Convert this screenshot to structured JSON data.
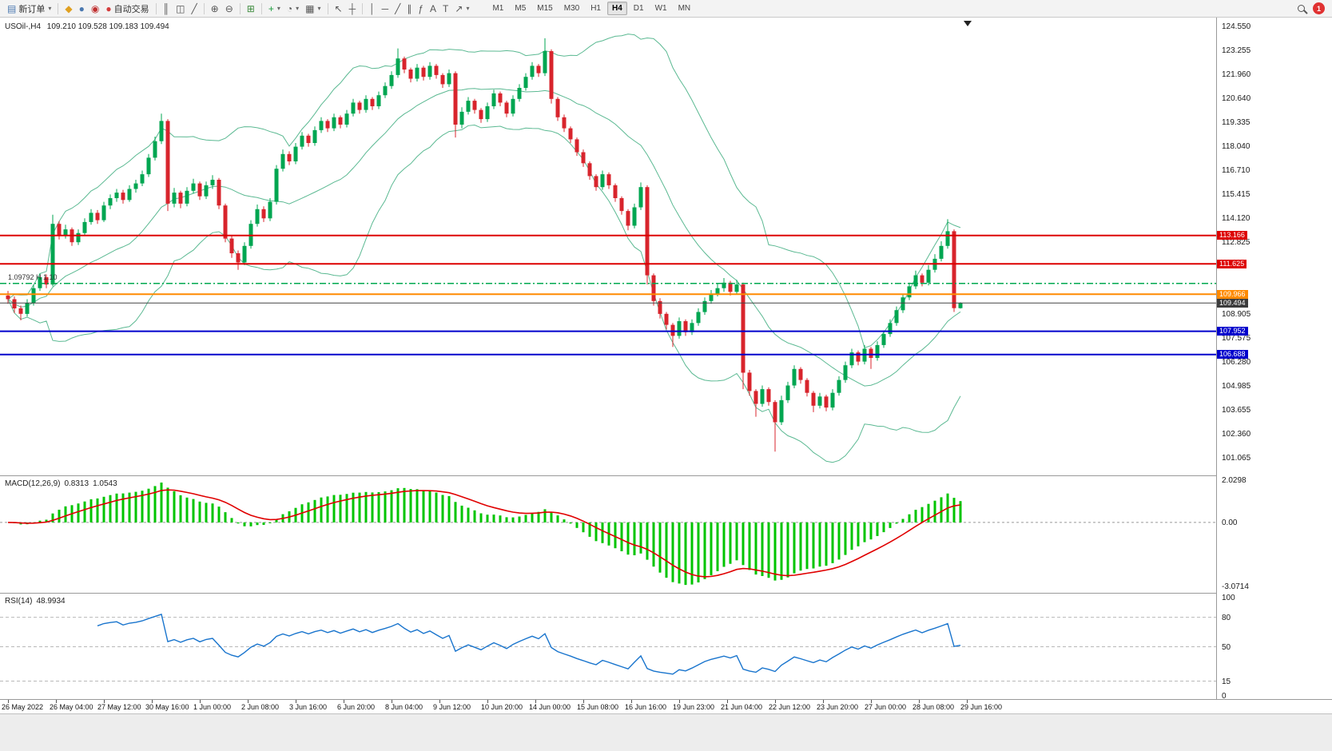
{
  "toolbar": {
    "notification_count": "1",
    "left_items": [
      {
        "name": "new-order-button",
        "icon": "new-order-icon",
        "glyph": "▤",
        "color": "#4a78b0",
        "label": "新订单",
        "dropdown": true
      },
      {
        "sep": true
      },
      {
        "name": "metaeditor-button",
        "icon": "metaeditor-icon",
        "glyph": "◆",
        "color": "#e0a020"
      },
      {
        "name": "profile-button",
        "icon": "profile-icon",
        "glyph": "●",
        "color": "#4a78b0"
      },
      {
        "name": "community-button",
        "icon": "community-icon",
        "glyph": "◉",
        "color": "#c03030"
      },
      {
        "name": "autotrading-button",
        "icon": "autotrading-icon",
        "glyph": "●",
        "color": "#d43c3c",
        "label": "自动交易"
      },
      {
        "sep": true
      },
      {
        "name": "bar-chart-button",
        "icon": "bar-chart-icon",
        "glyph": "║"
      },
      {
        "name": "candlestick-chart-button",
        "icon": "candlestick-icon",
        "glyph": "◫"
      },
      {
        "name": "line-chart-button",
        "icon": "line-chart-icon",
        "glyph": "╱"
      },
      {
        "sep": true
      },
      {
        "name": "zoom-in-button",
        "icon": "zoom-in-icon",
        "glyph": "⊕"
      },
      {
        "name": "zoom-out-button",
        "icon": "zoom-out-icon",
        "glyph": "⊖"
      },
      {
        "sep": true
      },
      {
        "name": "tile-windows-button",
        "icon": "tile-windows-icon",
        "glyph": "⊞",
        "color": "#3c8a3c"
      },
      {
        "sep": true
      },
      {
        "name": "indicators-button",
        "icon": "indicators-icon",
        "glyph": "+",
        "color": "#1a9c3c",
        "dropdown": true
      },
      {
        "name": "periods-button",
        "icon": "clock-icon",
        "glyph": "◔",
        "dropdown": true
      },
      {
        "name": "templates-button",
        "icon": "template-icon",
        "glyph": "▦",
        "dropdown": true
      },
      {
        "sep": true
      },
      {
        "name": "cursor-button",
        "icon": "cursor-icon",
        "glyph": "↖"
      },
      {
        "name": "crosshair-button",
        "icon": "crosshair-icon",
        "glyph": "┼"
      },
      {
        "sep": true
      },
      {
        "name": "vertical-line-button",
        "icon": "vertical-line-icon",
        "glyph": "│"
      },
      {
        "name": "horizontal-line-button",
        "icon": "horizontal-line-icon",
        "glyph": "─"
      },
      {
        "name": "trendline-button",
        "icon": "trendline-icon",
        "glyph": "╱"
      },
      {
        "name": "channel-button",
        "icon": "channel-icon",
        "glyph": "∥"
      },
      {
        "name": "fibonacci-button",
        "icon": "fibonacci-icon",
        "glyph": "ƒ"
      },
      {
        "name": "text-button",
        "icon": "text-icon",
        "glyph": "A"
      },
      {
        "name": "label-button",
        "icon": "label-icon",
        "glyph": "T"
      },
      {
        "name": "arrows-button",
        "icon": "arrow-icon",
        "glyph": "↗",
        "dropdown": true
      }
    ],
    "timeframes": {
      "items": [
        "M1",
        "M5",
        "M15",
        "M30",
        "H1",
        "H4",
        "D1",
        "W1",
        "MN"
      ],
      "active": "H4"
    }
  },
  "chart": {
    "symbol_label": "USOil-,H4",
    "ohlc_label": "109.210 109.528 109.183 109.494",
    "annotation": "1.09792 H 1.10",
    "colors": {
      "candle_up": "#00a651",
      "candle_down": "#d8242c",
      "bollinger": "#5bb992",
      "macd_hist": "#00c400",
      "macd_signal": "#e00000",
      "rsi_line": "#1874cd",
      "current_price_tag": "#3c3c3c"
    },
    "axis_ticks": [
      "124.550",
      "123.255",
      "121.960",
      "120.640",
      "119.335",
      "118.040",
      "116.710",
      "115.415",
      "114.120",
      "112.825",
      "108.905",
      "107.575",
      "106.280",
      "104.985",
      "103.655",
      "102.360",
      "101.065"
    ],
    "lines": [
      {
        "price": 113.166,
        "label": "113.166",
        "color": "#dd0000",
        "width": 2,
        "dash": "",
        "tag": true,
        "name": "resistance-line-113166"
      },
      {
        "price": 111.625,
        "label": "111.625",
        "color": "#dd0000",
        "width": 2,
        "dash": "",
        "tag": true,
        "name": "resistance-line-111625"
      },
      {
        "price": 110.56,
        "label": "",
        "color": "#00a84f",
        "width": 1.5,
        "dash": "8 3 2 3",
        "tag": false,
        "name": "support-line-green-dashed"
      },
      {
        "price": 109.966,
        "label": "109.966",
        "color": "#ff8a00",
        "width": 2,
        "dash": "",
        "tag": true,
        "name": "pivot-line-109966"
      },
      {
        "price": 109.494,
        "label": "109.494",
        "color": "#444444",
        "width": 1,
        "dash": "",
        "tag": true,
        "name": "current-price-line"
      },
      {
        "price": 107.952,
        "label": "107.952",
        "color": "#0000cc",
        "width": 2,
        "dash": "",
        "tag": true,
        "name": "support-line-107952"
      },
      {
        "price": 106.688,
        "label": "106.688",
        "color": "#0000cc",
        "width": 2,
        "dash": "",
        "tag": true,
        "name": "support-line-106688"
      }
    ],
    "time_labels": [
      "26 May 2022",
      "26 May 04:00",
      "27 May 12:00",
      "30 May 16:00",
      "1 Jun 00:00",
      "2 Jun 08:00",
      "3 Jun 16:00",
      "6 Jun 20:00",
      "8 Jun 04:00",
      "9 Jun 12:00",
      "10 Jun 20:00",
      "14 Jun 00:00",
      "15 Jun 08:00",
      "16 Jun 16:00",
      "19 Jun 23:00",
      "21 Jun 04:00",
      "22 Jun 12:00",
      "23 Jun 20:00",
      "27 Jun 00:00",
      "28 Jun 08:00",
      "29 Jun 16:00"
    ]
  },
  "panes": {
    "macd": {
      "label": "MACD(12,26,9)",
      "value_main": "0.8313",
      "value_signal": "1.0543"
    },
    "rsi": {
      "label": "RSI(14)",
      "value": "48.9934"
    }
  },
  "chart_data": {
    "type": "candlestick",
    "symbol": "USOil",
    "timeframe": "H4",
    "current_bar": {
      "open": 109.21,
      "high": 109.528,
      "low": 109.183,
      "close": 109.494
    },
    "y_axis": {
      "min": 101.065,
      "max": 124.55
    },
    "macd_axis": {
      "min": -3.0714,
      "max": 2.0298,
      "ticks": [
        {
          "v": 2.0298,
          "t": "2.0298"
        },
        {
          "v": 0,
          "t": "0.00"
        },
        {
          "v": -3.0714,
          "t": "-3.0714"
        }
      ]
    },
    "rsi_axis": {
      "min": 0,
      "max": 100,
      "levels": [
        80,
        50,
        15
      ],
      "ticks": [
        {
          "v": 100,
          "t": "100"
        },
        {
          "v": 80,
          "t": "80"
        },
        {
          "v": 50,
          "t": "50"
        },
        {
          "v": 15,
          "t": "15"
        },
        {
          "v": 0,
          "t": "0"
        }
      ]
    },
    "indicators": {
      "bollinger": {
        "period": 20,
        "deviation": 2
      },
      "macd": {
        "fast": 12,
        "slow": 26,
        "signal": 9
      },
      "rsi": {
        "period": 14
      }
    },
    "candles": [
      [
        109.9,
        110.15,
        109.45,
        109.7
      ],
      [
        109.7,
        109.85,
        108.95,
        109.2
      ],
      [
        109.2,
        109.35,
        108.55,
        108.9
      ],
      [
        108.9,
        109.7,
        108.75,
        109.5
      ],
      [
        109.5,
        110.5,
        109.35,
        110.3
      ],
      [
        110.3,
        111.1,
        110.15,
        110.9
      ],
      [
        110.9,
        111.05,
        110.3,
        110.5
      ],
      [
        110.5,
        114.3,
        110.4,
        113.8
      ],
      [
        113.8,
        113.95,
        112.95,
        113.2
      ],
      [
        113.2,
        113.75,
        113.0,
        113.5
      ],
      [
        113.5,
        113.6,
        112.6,
        112.8
      ],
      [
        112.8,
        113.5,
        112.65,
        113.3
      ],
      [
        113.3,
        114.1,
        113.15,
        113.9
      ],
      [
        113.9,
        114.6,
        113.75,
        114.4
      ],
      [
        114.4,
        114.55,
        113.8,
        114.0
      ],
      [
        114.0,
        115.0,
        113.9,
        114.8
      ],
      [
        114.8,
        115.4,
        114.6,
        115.2
      ],
      [
        115.2,
        115.7,
        115.0,
        115.5
      ],
      [
        115.5,
        115.65,
        114.9,
        115.1
      ],
      [
        115.1,
        115.9,
        115.0,
        115.7
      ],
      [
        115.7,
        116.2,
        115.5,
        116.0
      ],
      [
        116.0,
        116.7,
        115.85,
        116.5
      ],
      [
        116.5,
        117.6,
        116.35,
        117.4
      ],
      [
        117.4,
        118.55,
        117.25,
        118.3
      ],
      [
        118.3,
        119.8,
        118.15,
        119.4
      ],
      [
        119.4,
        119.5,
        114.5,
        114.9
      ],
      [
        114.9,
        115.75,
        114.7,
        115.5
      ],
      [
        115.5,
        115.6,
        114.65,
        114.9
      ],
      [
        114.9,
        115.8,
        114.75,
        115.6
      ],
      [
        115.6,
        116.25,
        115.45,
        116.0
      ],
      [
        116.0,
        116.1,
        115.1,
        115.3
      ],
      [
        115.3,
        116.1,
        115.15,
        115.9
      ],
      [
        115.9,
        116.45,
        115.7,
        116.2
      ],
      [
        116.2,
        116.3,
        114.6,
        114.8
      ],
      [
        114.8,
        114.9,
        112.8,
        113.0
      ],
      [
        113.0,
        113.15,
        111.95,
        112.2
      ],
      [
        112.2,
        112.35,
        111.3,
        111.7
      ],
      [
        111.7,
        112.8,
        111.55,
        112.6
      ],
      [
        112.6,
        114.0,
        112.45,
        113.8
      ],
      [
        113.8,
        114.85,
        113.65,
        114.6
      ],
      [
        114.6,
        114.75,
        113.9,
        114.1
      ],
      [
        114.1,
        115.2,
        113.95,
        115.0
      ],
      [
        115.0,
        117.0,
        114.85,
        116.8
      ],
      [
        116.8,
        117.85,
        116.65,
        117.6
      ],
      [
        117.6,
        117.75,
        117.0,
        117.2
      ],
      [
        117.2,
        118.2,
        117.05,
        118.0
      ],
      [
        118.0,
        118.8,
        117.85,
        118.6
      ],
      [
        118.6,
        118.7,
        118.0,
        118.2
      ],
      [
        118.2,
        119.1,
        118.05,
        118.9
      ],
      [
        118.9,
        119.6,
        118.75,
        119.4
      ],
      [
        119.4,
        119.5,
        118.8,
        119.0
      ],
      [
        119.0,
        119.8,
        118.85,
        119.6
      ],
      [
        119.6,
        119.7,
        119.0,
        119.2
      ],
      [
        119.2,
        120.0,
        119.05,
        119.8
      ],
      [
        119.8,
        120.6,
        119.65,
        120.4
      ],
      [
        120.4,
        120.5,
        119.8,
        120.0
      ],
      [
        120.0,
        120.8,
        119.85,
        120.6
      ],
      [
        120.6,
        120.7,
        120.0,
        120.2
      ],
      [
        120.2,
        121.0,
        120.05,
        120.8
      ],
      [
        120.8,
        121.5,
        120.65,
        121.3
      ],
      [
        121.3,
        122.1,
        121.15,
        121.9
      ],
      [
        121.9,
        123.35,
        121.75,
        122.8
      ],
      [
        122.8,
        122.9,
        122.0,
        122.2
      ],
      [
        122.2,
        122.3,
        121.5,
        121.7
      ],
      [
        121.7,
        122.5,
        121.55,
        122.3
      ],
      [
        122.3,
        122.4,
        121.6,
        121.8
      ],
      [
        121.8,
        122.6,
        121.65,
        122.4
      ],
      [
        122.4,
        122.5,
        121.7,
        121.9
      ],
      [
        121.9,
        122.0,
        121.2,
        121.4
      ],
      [
        121.4,
        122.2,
        121.25,
        122.0
      ],
      [
        122.0,
        122.1,
        118.5,
        119.2
      ],
      [
        119.2,
        120.15,
        119.0,
        119.9
      ],
      [
        119.9,
        120.7,
        119.75,
        120.5
      ],
      [
        120.5,
        120.6,
        119.8,
        120.0
      ],
      [
        120.0,
        120.1,
        119.3,
        119.5
      ],
      [
        119.5,
        120.4,
        119.35,
        120.2
      ],
      [
        120.2,
        121.1,
        120.05,
        120.9
      ],
      [
        120.9,
        121.0,
        120.2,
        120.4
      ],
      [
        120.4,
        120.5,
        119.6,
        119.8
      ],
      [
        119.8,
        120.8,
        119.65,
        120.6
      ],
      [
        120.6,
        121.4,
        120.45,
        121.2
      ],
      [
        121.2,
        122.0,
        121.05,
        121.8
      ],
      [
        121.8,
        122.6,
        121.65,
        122.4
      ],
      [
        122.4,
        122.5,
        121.8,
        122.0
      ],
      [
        122.0,
        123.9,
        121.85,
        123.2
      ],
      [
        123.2,
        123.3,
        120.35,
        120.6
      ],
      [
        120.6,
        120.7,
        119.4,
        119.6
      ],
      [
        119.6,
        119.75,
        118.8,
        119.0
      ],
      [
        119.0,
        119.1,
        118.2,
        118.4
      ],
      [
        118.4,
        118.5,
        117.5,
        117.7
      ],
      [
        117.7,
        117.85,
        116.9,
        117.1
      ],
      [
        117.1,
        117.2,
        116.2,
        116.4
      ],
      [
        116.4,
        116.5,
        115.6,
        115.8
      ],
      [
        115.8,
        116.7,
        115.65,
        116.5
      ],
      [
        116.5,
        116.6,
        115.7,
        115.9
      ],
      [
        115.9,
        116.0,
        115.0,
        115.2
      ],
      [
        115.2,
        115.3,
        114.3,
        114.5
      ],
      [
        114.5,
        114.6,
        113.45,
        113.7
      ],
      [
        113.7,
        114.9,
        113.55,
        114.7
      ],
      [
        114.7,
        116.05,
        114.55,
        115.8
      ],
      [
        115.8,
        115.9,
        110.5,
        111.0
      ],
      [
        111.0,
        111.1,
        109.35,
        109.6
      ],
      [
        109.6,
        109.75,
        108.65,
        108.9
      ],
      [
        108.9,
        109.0,
        108.05,
        108.3
      ],
      [
        108.3,
        108.4,
        107.1,
        107.7
      ],
      [
        107.7,
        108.7,
        107.55,
        108.5
      ],
      [
        108.5,
        108.6,
        107.7,
        107.9
      ],
      [
        107.9,
        108.6,
        107.75,
        108.4
      ],
      [
        108.4,
        109.2,
        108.25,
        109.0
      ],
      [
        109.0,
        109.8,
        108.85,
        109.6
      ],
      [
        109.6,
        110.2,
        109.45,
        110.0
      ],
      [
        110.0,
        110.55,
        109.85,
        110.3
      ],
      [
        110.3,
        110.85,
        110.1,
        110.6
      ],
      [
        110.6,
        110.7,
        109.9,
        110.1
      ],
      [
        110.1,
        110.75,
        109.95,
        110.5
      ],
      [
        110.5,
        110.6,
        104.8,
        105.7
      ],
      [
        105.7,
        105.85,
        104.45,
        104.7
      ],
      [
        104.7,
        104.8,
        103.3,
        104.0
      ],
      [
        104.0,
        105.0,
        103.85,
        104.8
      ],
      [
        104.8,
        104.9,
        103.9,
        104.1
      ],
      [
        104.1,
        104.2,
        101.4,
        103.0
      ],
      [
        103.0,
        104.45,
        102.85,
        104.2
      ],
      [
        104.2,
        105.2,
        104.05,
        105.0
      ],
      [
        105.0,
        106.1,
        104.85,
        105.9
      ],
      [
        105.9,
        106.0,
        105.1,
        105.3
      ],
      [
        105.3,
        105.4,
        104.4,
        104.6
      ],
      [
        104.6,
        104.7,
        103.55,
        103.9
      ],
      [
        103.9,
        104.6,
        103.75,
        104.4
      ],
      [
        104.4,
        104.5,
        103.6,
        103.8
      ],
      [
        103.8,
        104.8,
        103.65,
        104.6
      ],
      [
        104.6,
        105.5,
        104.45,
        105.3
      ],
      [
        105.3,
        106.3,
        105.15,
        106.1
      ],
      [
        106.1,
        107.0,
        105.95,
        106.8
      ],
      [
        106.8,
        106.9,
        106.1,
        106.3
      ],
      [
        106.3,
        107.2,
        106.15,
        107.0
      ],
      [
        107.0,
        107.1,
        105.9,
        106.5
      ],
      [
        106.5,
        107.4,
        106.35,
        107.2
      ],
      [
        107.2,
        108.0,
        107.05,
        107.8
      ],
      [
        107.8,
        108.6,
        107.65,
        108.4
      ],
      [
        108.4,
        109.3,
        108.25,
        109.1
      ],
      [
        109.1,
        110.0,
        108.95,
        109.8
      ],
      [
        109.8,
        110.6,
        109.65,
        110.4
      ],
      [
        110.4,
        111.25,
        110.25,
        111.0
      ],
      [
        111.0,
        111.1,
        110.4,
        110.6
      ],
      [
        110.6,
        111.55,
        110.45,
        111.3
      ],
      [
        111.3,
        112.15,
        111.15,
        111.9
      ],
      [
        111.9,
        112.85,
        111.75,
        112.6
      ],
      [
        112.6,
        114.05,
        112.45,
        113.4
      ],
      [
        113.4,
        113.5,
        109.0,
        109.21
      ],
      [
        109.21,
        109.528,
        109.183,
        109.494
      ]
    ]
  }
}
